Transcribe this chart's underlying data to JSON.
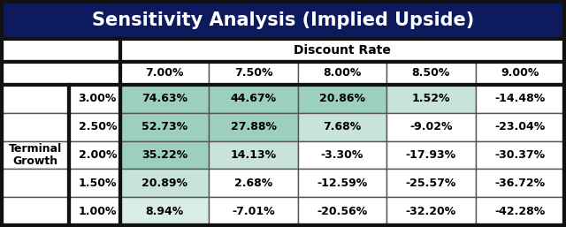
{
  "title": "Sensitivity Analysis (Implied Upside)",
  "title_bg": "#0D1A5E",
  "title_fg": "#FFFFFF",
  "col_header_label": "Discount Rate",
  "row_header_label": "Terminal\nGrowth",
  "discount_rates": [
    "7.00%",
    "7.50%",
    "8.00%",
    "8.50%",
    "9.00%"
  ],
  "growth_rates": [
    "3.00%",
    "2.50%",
    "2.00%",
    "1.50%",
    "1.00%"
  ],
  "values": [
    [
      "74.63%",
      "44.67%",
      "20.86%",
      "1.52%",
      "-14.48%"
    ],
    [
      "52.73%",
      "27.88%",
      "7.68%",
      "-9.02%",
      "-23.04%"
    ],
    [
      "35.22%",
      "14.13%",
      "-3.30%",
      "-17.93%",
      "-30.37%"
    ],
    [
      "20.89%",
      "2.68%",
      "-12.59%",
      "-25.57%",
      "-36.72%"
    ],
    [
      "8.94%",
      "-7.01%",
      "-20.56%",
      "-32.20%",
      "-42.28%"
    ]
  ],
  "cell_colors": [
    [
      "#9DCFBE",
      "#9DCFBE",
      "#9DCFBE",
      "#C8E3DA",
      "#FFFFFF"
    ],
    [
      "#9DCFBE",
      "#9DCFBE",
      "#C8E3DA",
      "#FFFFFF",
      "#FFFFFF"
    ],
    [
      "#9DCFBE",
      "#C8E3DA",
      "#FFFFFF",
      "#FFFFFF",
      "#FFFFFF"
    ],
    [
      "#C8E3DA",
      "#FFFFFF",
      "#FFFFFF",
      "#FFFFFF",
      "#FFFFFF"
    ],
    [
      "#D8EDE6",
      "#FFFFFF",
      "#FFFFFF",
      "#FFFFFF",
      "#FFFFFF"
    ]
  ],
  "outer_border_color": "#111111",
  "inner_border_color": "#555555",
  "title_fontsize": 15,
  "col_label_fontsize": 10,
  "data_fontsize": 9,
  "row_label_fontsize": 9,
  "fig_width": 6.4,
  "fig_height": 2.57,
  "dpi": 100
}
